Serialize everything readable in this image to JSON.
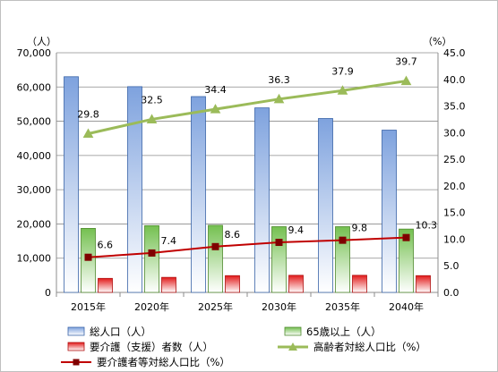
{
  "chart_data": {
    "type": "bar+line",
    "categories": [
      "2015年",
      "2020年",
      "2025年",
      "2030年",
      "2035年",
      "2040年"
    ],
    "y_left": {
      "unit": "（人）",
      "lim": [
        0,
        70000
      ],
      "ticks": [
        "0",
        "10,000",
        "20,000",
        "30,000",
        "40,000",
        "50,000",
        "60,000",
        "70,000"
      ]
    },
    "y_right": {
      "unit": "（%）",
      "lim": [
        0,
        45
      ],
      "ticks": [
        "0.0",
        "5.0",
        "10.0",
        "15.0",
        "20.0",
        "25.0",
        "30.0",
        "35.0",
        "40.0",
        "45.0"
      ]
    },
    "bars": [
      {
        "name": "総人口（人）",
        "values": [
          63000,
          60100,
          57200,
          53900,
          50800,
          47400
        ],
        "color": "#a9c4ee"
      },
      {
        "name": "65歳以上（人）",
        "values": [
          18700,
          19500,
          19600,
          19200,
          19200,
          18500
        ],
        "color": "#9cd27c"
      },
      {
        "name": "要介護（支援）者数（人）",
        "values": [
          4100,
          4400,
          4900,
          5000,
          5000,
          4900
        ],
        "color": "#ee3333"
      }
    ],
    "lines": [
      {
        "name": "高齢者対総人口比（%）",
        "values": [
          29.8,
          32.5,
          34.4,
          36.3,
          37.9,
          39.7
        ],
        "labels": [
          "29.8",
          "32.5",
          "34.4",
          "36.3",
          "37.9",
          "39.7"
        ],
        "color": "#9bbb59",
        "marker": "triangle"
      },
      {
        "name": "要介護者等対総人口比（%）",
        "values": [
          6.6,
          7.4,
          8.6,
          9.4,
          9.8,
          10.3
        ],
        "labels": [
          "6.6",
          "7.4",
          "8.6",
          "9.4",
          "9.8",
          "10.3"
        ],
        "color": "#c00000",
        "marker": "square"
      }
    ],
    "grid": true,
    "legend": "bottom"
  }
}
